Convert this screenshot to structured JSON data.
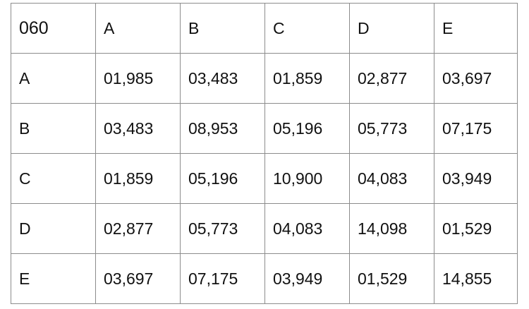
{
  "matrix": {
    "corner_label": "060",
    "column_headers": [
      "A",
      "B",
      "C",
      "D",
      "E"
    ],
    "rows": [
      {
        "label": "A",
        "values": [
          "01,985",
          "03,483",
          "01,859",
          "02,877",
          "03,697"
        ]
      },
      {
        "label": "B",
        "values": [
          "03,483",
          "08,953",
          "05,196",
          "05,773",
          "07,175"
        ]
      },
      {
        "label": "C",
        "values": [
          "01,859",
          "05,196",
          "10,900",
          "04,083",
          "03,949"
        ]
      },
      {
        "label": "D",
        "values": [
          "02,877",
          "05,773",
          "04,083",
          "14,098",
          "01,529"
        ]
      },
      {
        "label": "E",
        "values": [
          "03,697",
          "07,175",
          "03,949",
          "01,529",
          "14,855"
        ]
      }
    ]
  }
}
